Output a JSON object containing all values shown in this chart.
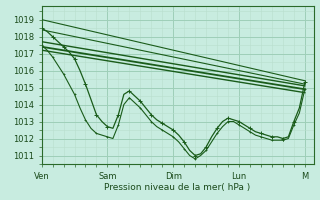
{
  "title": "Pression niveau de la mer( hPa )",
  "bg_color": "#c8ece0",
  "grid_major_color": "#9ecfb8",
  "grid_minor_color": "#b8dece",
  "line_color": "#1a5c1a",
  "ylim_min": 1010.5,
  "ylim_max": 1019.8,
  "yticks": [
    1011,
    1012,
    1013,
    1014,
    1015,
    1016,
    1017,
    1018,
    1019
  ],
  "xtick_labels": [
    "Ven",
    "Sam",
    "Dim",
    "Lun",
    "M"
  ],
  "xtick_pos": [
    0,
    60,
    120,
    180,
    240
  ],
  "xlim_max": 248,
  "straight_lines": [
    {
      "x0": 0,
      "y0": 1019.0,
      "x1": 240,
      "y1": 1015.4,
      "lw": 0.8
    },
    {
      "x0": 0,
      "y0": 1018.4,
      "x1": 240,
      "y1": 1015.2,
      "lw": 0.8
    },
    {
      "x0": 0,
      "y0": 1017.7,
      "x1": 240,
      "y1": 1015.1,
      "lw": 1.0
    },
    {
      "x0": 0,
      "y0": 1017.4,
      "x1": 240,
      "y1": 1014.9,
      "lw": 1.3
    },
    {
      "x0": 0,
      "y0": 1017.2,
      "x1": 240,
      "y1": 1014.7,
      "lw": 1.0
    }
  ],
  "main_line": [
    [
      0,
      1018.5
    ],
    [
      5,
      1018.3
    ],
    [
      10,
      1018.0
    ],
    [
      15,
      1017.7
    ],
    [
      20,
      1017.4
    ],
    [
      25,
      1017.1
    ],
    [
      30,
      1016.7
    ],
    [
      35,
      1016.0
    ],
    [
      40,
      1015.2
    ],
    [
      45,
      1014.3
    ],
    [
      50,
      1013.4
    ],
    [
      55,
      1013.0
    ],
    [
      60,
      1012.7
    ],
    [
      65,
      1012.6
    ],
    [
      70,
      1013.4
    ],
    [
      75,
      1014.6
    ],
    [
      80,
      1014.8
    ],
    [
      85,
      1014.5
    ],
    [
      90,
      1014.2
    ],
    [
      95,
      1013.8
    ],
    [
      100,
      1013.4
    ],
    [
      105,
      1013.1
    ],
    [
      110,
      1012.9
    ],
    [
      115,
      1012.7
    ],
    [
      120,
      1012.5
    ],
    [
      125,
      1012.2
    ],
    [
      130,
      1011.8
    ],
    [
      135,
      1011.3
    ],
    [
      140,
      1011.0
    ],
    [
      145,
      1011.1
    ],
    [
      150,
      1011.5
    ],
    [
      155,
      1012.1
    ],
    [
      160,
      1012.6
    ],
    [
      165,
      1013.0
    ],
    [
      170,
      1013.2
    ],
    [
      175,
      1013.1
    ],
    [
      180,
      1013.0
    ],
    [
      185,
      1012.8
    ],
    [
      190,
      1012.6
    ],
    [
      195,
      1012.4
    ],
    [
      200,
      1012.3
    ],
    [
      205,
      1012.2
    ],
    [
      210,
      1012.1
    ],
    [
      215,
      1012.1
    ],
    [
      220,
      1012.0
    ],
    [
      225,
      1012.1
    ],
    [
      230,
      1013.0
    ],
    [
      235,
      1013.8
    ],
    [
      240,
      1015.3
    ]
  ],
  "secondary_line": [
    [
      0,
      1017.5
    ],
    [
      5,
      1017.2
    ],
    [
      10,
      1016.8
    ],
    [
      15,
      1016.3
    ],
    [
      20,
      1015.8
    ],
    [
      25,
      1015.2
    ],
    [
      30,
      1014.6
    ],
    [
      35,
      1013.8
    ],
    [
      40,
      1013.1
    ],
    [
      45,
      1012.6
    ],
    [
      50,
      1012.3
    ],
    [
      55,
      1012.2
    ],
    [
      60,
      1012.1
    ],
    [
      65,
      1012.0
    ],
    [
      70,
      1012.8
    ],
    [
      75,
      1014.0
    ],
    [
      80,
      1014.4
    ],
    [
      85,
      1014.1
    ],
    [
      90,
      1013.8
    ],
    [
      95,
      1013.4
    ],
    [
      100,
      1013.0
    ],
    [
      105,
      1012.7
    ],
    [
      110,
      1012.5
    ],
    [
      115,
      1012.3
    ],
    [
      120,
      1012.1
    ],
    [
      125,
      1011.8
    ],
    [
      130,
      1011.4
    ],
    [
      135,
      1011.0
    ],
    [
      140,
      1010.8
    ],
    [
      145,
      1011.0
    ],
    [
      150,
      1011.3
    ],
    [
      155,
      1011.8
    ],
    [
      160,
      1012.3
    ],
    [
      165,
      1012.7
    ],
    [
      170,
      1013.0
    ],
    [
      175,
      1013.0
    ],
    [
      180,
      1012.8
    ],
    [
      185,
      1012.6
    ],
    [
      190,
      1012.4
    ],
    [
      195,
      1012.2
    ],
    [
      200,
      1012.1
    ],
    [
      205,
      1012.0
    ],
    [
      210,
      1011.9
    ],
    [
      215,
      1011.9
    ],
    [
      220,
      1011.9
    ],
    [
      225,
      1012.0
    ],
    [
      230,
      1012.8
    ],
    [
      235,
      1013.5
    ],
    [
      240,
      1014.9
    ]
  ]
}
